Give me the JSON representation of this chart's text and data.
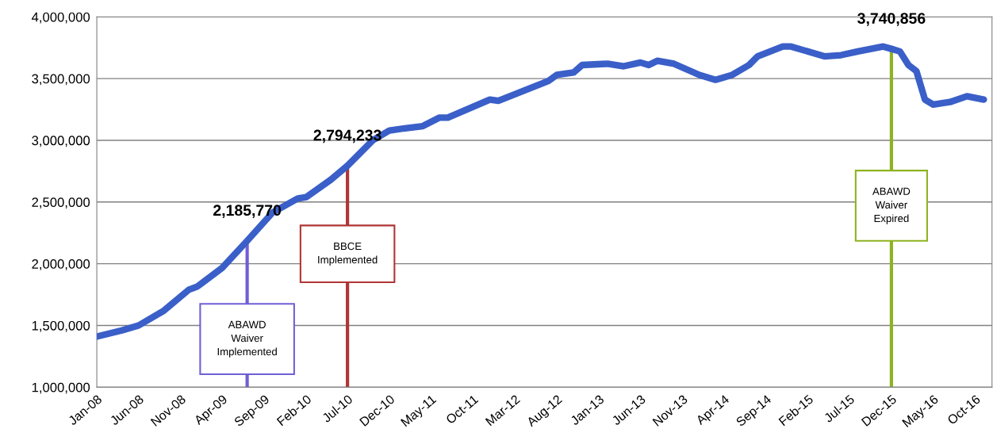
{
  "chart_data": {
    "type": "line",
    "x": [
      "2008-01",
      "2008-04",
      "2008-06",
      "2008-09",
      "2008-12",
      "2009-01",
      "2009-04",
      "2009-07",
      "2009-10",
      "2010-01",
      "2010-02",
      "2010-05",
      "2010-07",
      "2010-10",
      "2010-12",
      "2011-02",
      "2011-04",
      "2011-06",
      "2011-07",
      "2011-12",
      "2012-01",
      "2012-04",
      "2012-07",
      "2012-08",
      "2012-10",
      "2012-11",
      "2013-02",
      "2013-04",
      "2013-06",
      "2013-07",
      "2013-08",
      "2013-10",
      "2013-12",
      "2014-01",
      "2014-03",
      "2014-05",
      "2014-07",
      "2014-08",
      "2014-11",
      "2014-12",
      "2015-04",
      "2015-06",
      "2015-08",
      "2015-11",
      "2015-12",
      "2016-01",
      "2016-02",
      "2016-03",
      "2016-04",
      "2016-05",
      "2016-07",
      "2016-09",
      "2016-11"
    ],
    "series": [
      {
        "color": "#3a5fc8",
        "values": [
          1410000,
          1460000,
          1500000,
          1620000,
          1790000,
          1816000,
          1966000,
          2185770,
          2414000,
          2529000,
          2540000,
          2680000,
          2794233,
          3000000,
          3080000,
          3099000,
          3115000,
          3184000,
          3184000,
          3330000,
          3320000,
          3400000,
          3480000,
          3530000,
          3550000,
          3610000,
          3620000,
          3600000,
          3630000,
          3610000,
          3644000,
          3620000,
          3560000,
          3530000,
          3490000,
          3530000,
          3610000,
          3680000,
          3760000,
          3760000,
          3680000,
          3690000,
          3720000,
          3760000,
          3740856,
          3720000,
          3610000,
          3560000,
          3330000,
          3290000,
          3310000,
          3357000,
          3330000
        ]
      }
    ],
    "xlim": [
      "2008-01",
      "2016-12"
    ],
    "xticks": [
      {
        "value": "2008-01",
        "label": "Jan-08"
      },
      {
        "value": "2008-06",
        "label": "Jun-08"
      },
      {
        "value": "2008-11",
        "label": "Nov-08"
      },
      {
        "value": "2009-04",
        "label": "Apr-09"
      },
      {
        "value": "2009-09",
        "label": "Sep-09"
      },
      {
        "value": "2010-02",
        "label": "Feb-10"
      },
      {
        "value": "2010-07",
        "label": "Jul-10"
      },
      {
        "value": "2010-12",
        "label": "Dec-10"
      },
      {
        "value": "2011-05",
        "label": "May-11"
      },
      {
        "value": "2011-10",
        "label": "Oct-11"
      },
      {
        "value": "2012-03",
        "label": "Mar-12"
      },
      {
        "value": "2012-08",
        "label": "Aug-12"
      },
      {
        "value": "2013-01",
        "label": "Jan-13"
      },
      {
        "value": "2013-06",
        "label": "Jun-13"
      },
      {
        "value": "2013-11",
        "label": "Nov-13"
      },
      {
        "value": "2014-04",
        "label": "Apr-14"
      },
      {
        "value": "2014-09",
        "label": "Sep-14"
      },
      {
        "value": "2015-02",
        "label": "Feb-15"
      },
      {
        "value": "2015-07",
        "label": "Jul-15"
      },
      {
        "value": "2015-12",
        "label": "Dec-15"
      },
      {
        "value": "2016-05",
        "label": "May-16"
      },
      {
        "value": "2016-10",
        "label": "Oct-16"
      }
    ],
    "ylim": [
      1000000,
      4000000
    ],
    "yticks": [
      {
        "value": 1000000,
        "label": "1,000,000"
      },
      {
        "value": 1500000,
        "label": "1,500,000"
      },
      {
        "value": 2000000,
        "label": "2,000,000"
      },
      {
        "value": 2500000,
        "label": "2,500,000"
      },
      {
        "value": 3000000,
        "label": "3,000,000"
      },
      {
        "value": 3500000,
        "label": "3,500,000"
      },
      {
        "value": 4000000,
        "label": "4,000,000"
      }
    ],
    "grid": "y",
    "annotations": [
      {
        "text": "2,185,770",
        "x": "2009-07",
        "y": 2185770
      },
      {
        "text": "2,794,233",
        "x": "2010-07",
        "y": 2794233
      },
      {
        "text": "3,740,856",
        "x": "2015-12",
        "y": 3740856
      }
    ],
    "ref_lines": [
      {
        "axis": "x",
        "value": "2009-07",
        "label": "ABAWD\nWaiver\nImplemented",
        "color": "#6f5fd6"
      },
      {
        "axis": "x",
        "value": "2010-07",
        "label": "BBCE\nImplemented",
        "color": "#b03535"
      },
      {
        "axis": "x",
        "value": "2015-12",
        "label": "ABAWD\nWaiver\nExpired",
        "color": "#8fb320"
      }
    ]
  }
}
